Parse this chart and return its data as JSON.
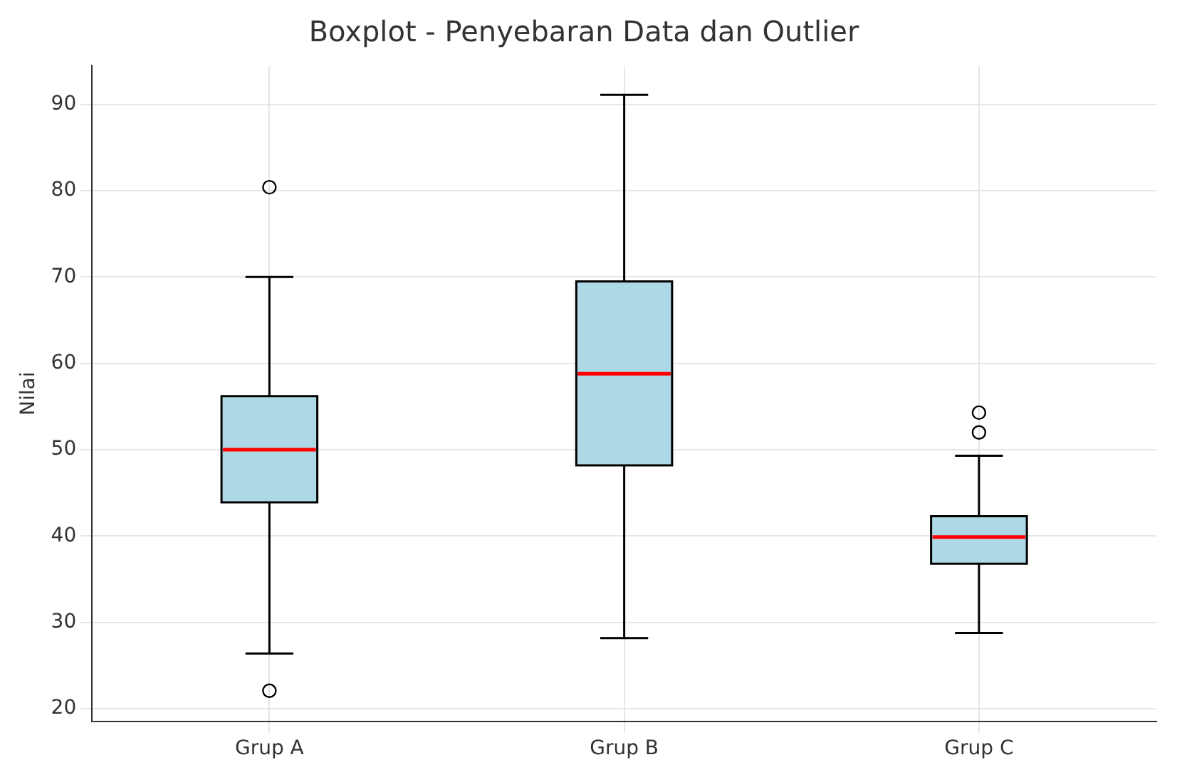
{
  "chart_data": {
    "type": "box",
    "title": "Boxplot - Penyebaran Data dan Outlier",
    "ylabel": "Nilai",
    "categories": [
      "Grup A",
      "Grup B",
      "Grup C"
    ],
    "color": "#add8e6",
    "boxes": [
      {
        "low": 26.4,
        "q1": 43.9,
        "median": 50,
        "q3": 56.2,
        "high": 70,
        "outliers": [
          80.4,
          22.1
        ]
      },
      {
        "low": 28.2,
        "q1": 48.2,
        "median": 58.8,
        "q3": 69.5,
        "high": 91.1
      },
      {
        "low": 28.8,
        "q1": 36.8,
        "median": 39.9,
        "q3": 42.3,
        "high": 49.3,
        "outliers": [
          54.3,
          52
        ]
      }
    ],
    "ylim": [
      18.5,
      94.5
    ],
    "yticks": [
      20,
      30,
      40,
      50,
      60,
      70,
      80,
      90
    ],
    "grid": true
  }
}
